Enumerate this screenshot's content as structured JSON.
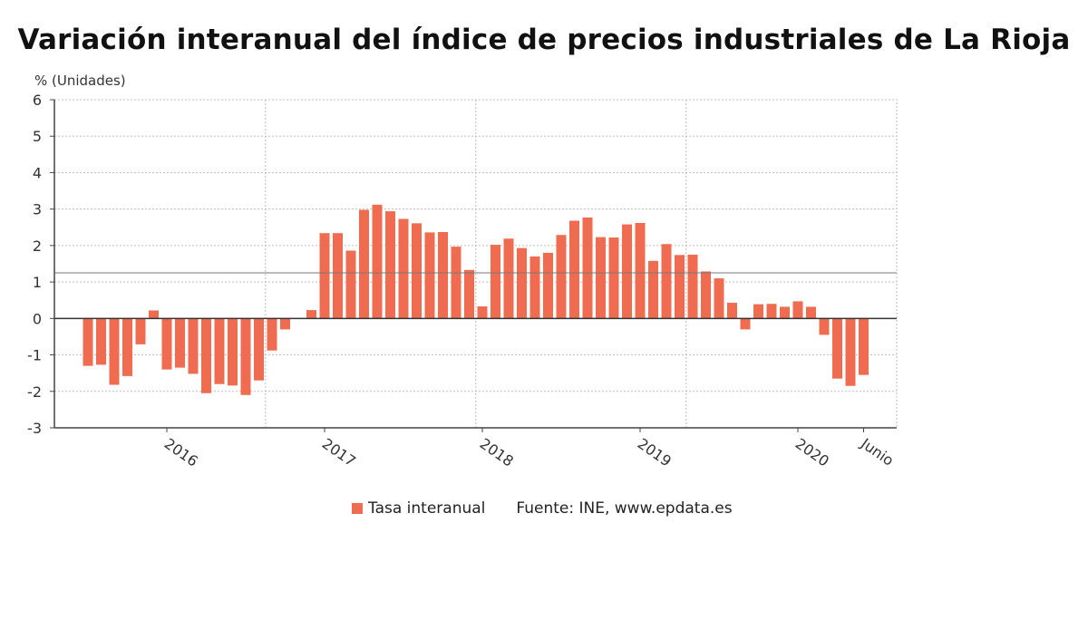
{
  "page": {
    "title": "Variación interanual del índice de precios industriales de La Rioja",
    "y_unit_label": "% (Unidades)",
    "legend_label": "Tasa interanual",
    "source": "Fuente: INE, www.epdata.es"
  },
  "colors": {
    "bar": "#ef6c50",
    "grid": "#bdbdbd",
    "zero_line": "#333333",
    "average_line": "#777777"
  },
  "chart_data": {
    "type": "bar",
    "title": "Variación interanual del índice de precios industriales de La Rioja",
    "ylabel": "% (Unidades)",
    "ylim": [
      -3,
      6
    ],
    "yticks": [
      6,
      5,
      4,
      3,
      2,
      1,
      0,
      -1,
      -2,
      -3
    ],
    "reference_line": 1.25,
    "grid": true,
    "legend": "bottom-center",
    "x_tick_labels": [
      {
        "label": "2016",
        "index": 6
      },
      {
        "label": "2017",
        "index": 18
      },
      {
        "label": "2018",
        "index": 30
      },
      {
        "label": "2019",
        "index": 42
      },
      {
        "label": "2020",
        "index": 54
      },
      {
        "label": "Junio",
        "index": 59
      }
    ],
    "series": [
      {
        "name": "Tasa interanual",
        "values": [
          -1.3,
          -1.27,
          -1.82,
          -1.58,
          -0.71,
          0.22,
          -1.4,
          -1.35,
          -1.52,
          -2.05,
          -1.8,
          -1.84,
          -2.1,
          -1.7,
          -0.88,
          -0.3,
          0.0,
          0.23,
          2.34,
          2.34,
          1.86,
          2.98,
          3.12,
          2.94,
          2.73,
          2.61,
          2.36,
          2.37,
          1.97,
          1.33,
          0.33,
          2.02,
          2.19,
          1.93,
          1.7,
          1.8,
          2.29,
          2.68,
          2.77,
          2.23,
          2.22,
          2.58,
          2.62,
          1.58,
          2.04,
          1.74,
          1.75,
          1.29,
          1.1,
          0.43,
          -0.3,
          0.39,
          0.4,
          0.32,
          0.47,
          0.32,
          -0.45,
          -1.65,
          -1.85,
          -1.55
        ]
      }
    ]
  }
}
